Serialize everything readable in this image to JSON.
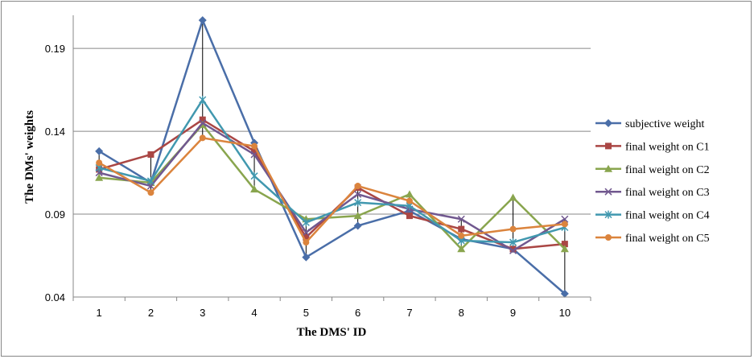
{
  "chart_data": {
    "type": "line",
    "title": "",
    "xlabel": "The  DMS' ID",
    "ylabel": "The DMs' weights",
    "x": [
      1,
      2,
      3,
      4,
      5,
      6,
      7,
      8,
      9,
      10
    ],
    "ylim": [
      0.04,
      0.21
    ],
    "yticks": [
      "0.04",
      "0.09",
      "0.14",
      "0.19"
    ],
    "grid": "horizontal",
    "legend": "right",
    "drop_lines": true,
    "series": [
      {
        "name": "subjective weight",
        "color": "#4A6EA8",
        "marker": "diamond",
        "values": [
          0.128,
          0.109,
          0.207,
          0.133,
          0.064,
          0.083,
          0.092,
          0.075,
          0.069,
          0.042
        ]
      },
      {
        "name": "final weight on C1",
        "color": "#AA4644",
        "marker": "square",
        "values": [
          0.117,
          0.126,
          0.147,
          0.128,
          0.076,
          0.106,
          0.089,
          0.081,
          0.069,
          0.072
        ]
      },
      {
        "name": "final weight on C2",
        "color": "#89A54E",
        "marker": "triangle",
        "values": [
          0.112,
          0.109,
          0.144,
          0.105,
          0.087,
          0.089,
          0.102,
          0.069,
          0.1,
          0.069
        ]
      },
      {
        "name": "final weight on C3",
        "color": "#71588F",
        "marker": "x",
        "values": [
          0.115,
          0.107,
          0.145,
          0.126,
          0.079,
          0.102,
          0.093,
          0.087,
          0.068,
          0.087
        ]
      },
      {
        "name": "final weight on C4",
        "color": "#4198AF",
        "marker": "asterisk",
        "values": [
          0.118,
          0.11,
          0.159,
          0.113,
          0.085,
          0.097,
          0.095,
          0.074,
          0.073,
          0.082
        ]
      },
      {
        "name": "final weight on C5",
        "color": "#DB843D",
        "marker": "circle",
        "values": [
          0.121,
          0.103,
          0.136,
          0.131,
          0.073,
          0.107,
          0.098,
          0.077,
          0.081,
          0.084
        ]
      }
    ]
  }
}
